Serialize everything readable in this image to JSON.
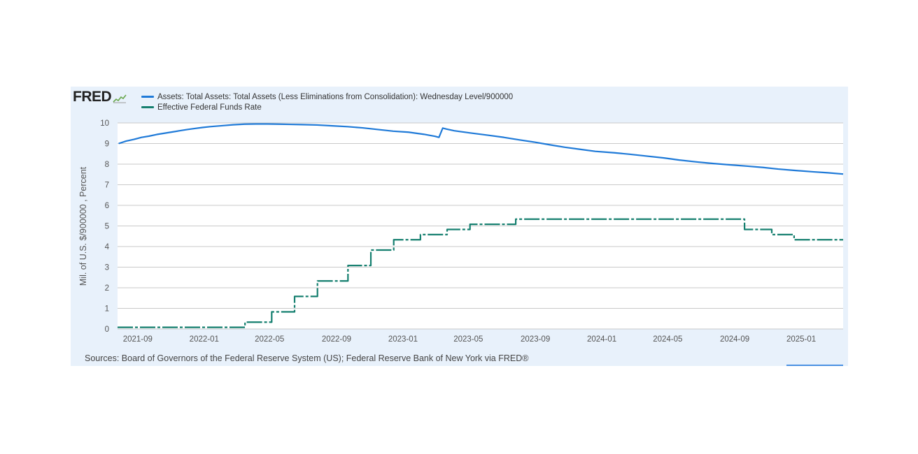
{
  "logo": {
    "text": "FRED",
    "icon": "fred-chart-icon"
  },
  "sources_text": "Sources: Board of Governors of the Federal Reserve System (US); Federal Reserve Bank of New York via FRED®",
  "colors": {
    "assets": "#1f7ad8",
    "effr": "#157f6f",
    "grid": "#c9c9c9",
    "panel": "#e8f1fb",
    "plot_bg": "#ffffff"
  },
  "chart_data": {
    "type": "line",
    "title": "",
    "xlabel": "",
    "ylabel": "Mil. of U.S. $/900000 , Percent",
    "ylim": [
      0,
      10
    ],
    "yticks": [
      0,
      1,
      2,
      3,
      4,
      5,
      6,
      7,
      8,
      9,
      10
    ],
    "xlim": [
      "2021-07-26",
      "2025-03-19"
    ],
    "xticks": [
      "2021-09",
      "2022-01",
      "2022-05",
      "2022-09",
      "2023-01",
      "2023-05",
      "2023-09",
      "2024-01",
      "2024-05",
      "2024-09",
      "2025-01"
    ],
    "grid": true,
    "legend_position": "top-left",
    "series": [
      {
        "name": "Assets: Total Assets: Total Assets (Less Eliminations from Consolidation): Wednesday Level/900000",
        "style": "solid",
        "x": [
          "2021-07-28",
          "2021-08-11",
          "2021-08-25",
          "2021-09-08",
          "2021-09-22",
          "2021-10-06",
          "2021-10-20",
          "2021-11-03",
          "2021-11-17",
          "2021-12-01",
          "2021-12-15",
          "2021-12-29",
          "2022-01-12",
          "2022-01-26",
          "2022-02-09",
          "2022-02-23",
          "2022-03-16",
          "2022-04-06",
          "2022-04-27",
          "2022-05-18",
          "2022-06-08",
          "2022-06-29",
          "2022-07-27",
          "2022-08-24",
          "2022-09-21",
          "2022-10-19",
          "2022-11-16",
          "2022-12-14",
          "2023-01-11",
          "2023-02-08",
          "2023-03-01",
          "2023-03-08",
          "2023-03-15",
          "2023-03-22",
          "2023-04-05",
          "2023-05-03",
          "2023-06-07",
          "2023-07-05",
          "2023-08-02",
          "2023-08-30",
          "2023-09-27",
          "2023-10-25",
          "2023-11-22",
          "2023-12-20",
          "2024-01-24",
          "2024-02-21",
          "2024-03-20",
          "2024-04-24",
          "2024-05-22",
          "2024-06-26",
          "2024-07-24",
          "2024-08-21",
          "2024-09-25",
          "2024-10-23",
          "2024-11-20",
          "2024-12-18",
          "2025-01-22",
          "2025-02-19",
          "2025-03-19"
        ],
        "values": [
          9.0,
          9.12,
          9.2,
          9.3,
          9.36,
          9.44,
          9.5,
          9.56,
          9.62,
          9.68,
          9.73,
          9.78,
          9.82,
          9.85,
          9.88,
          9.91,
          9.94,
          9.95,
          9.95,
          9.94,
          9.93,
          9.92,
          9.9,
          9.86,
          9.82,
          9.76,
          9.68,
          9.6,
          9.55,
          9.45,
          9.35,
          9.3,
          9.75,
          9.7,
          9.62,
          9.52,
          9.4,
          9.3,
          9.18,
          9.07,
          8.94,
          8.82,
          8.72,
          8.62,
          8.55,
          8.48,
          8.4,
          8.3,
          8.2,
          8.1,
          8.03,
          7.97,
          7.9,
          7.84,
          7.76,
          7.7,
          7.63,
          7.58,
          7.52
        ]
      },
      {
        "name": "Effective Federal Funds Rate",
        "style": "step",
        "x": [
          "2021-07-26",
          "2022-03-17",
          "2022-05-05",
          "2022-06-16",
          "2022-07-28",
          "2022-09-22",
          "2022-11-03",
          "2022-12-15",
          "2023-02-02",
          "2023-03-23",
          "2023-05-04",
          "2023-07-27",
          "2024-09-19",
          "2024-11-08",
          "2024-12-19",
          "2025-03-19"
        ],
        "values": [
          0.08,
          0.33,
          0.83,
          1.58,
          2.33,
          3.08,
          3.83,
          4.33,
          4.58,
          4.83,
          5.08,
          5.33,
          4.83,
          4.58,
          4.33,
          4.33
        ]
      }
    ]
  }
}
